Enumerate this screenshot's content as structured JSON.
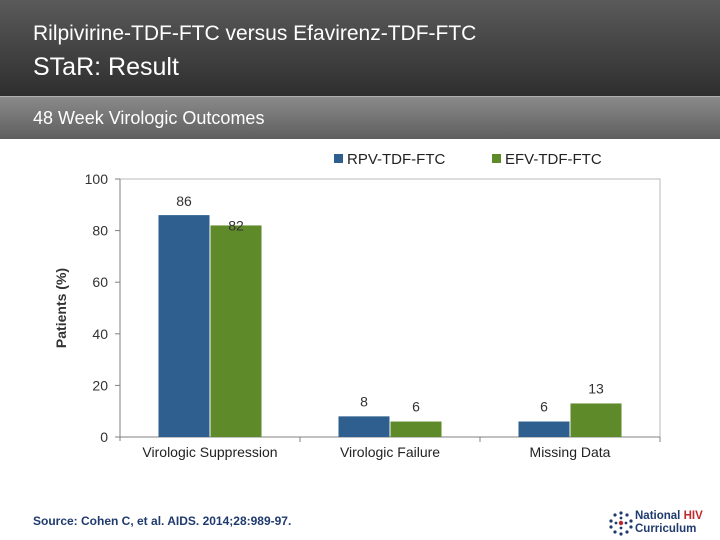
{
  "header": {
    "title_line1": "Rilpivirine-TDF-FTC versus Efavirenz-TDF-FTC",
    "title_line2": "STaR: Result"
  },
  "subheader": {
    "text": "48 Week Virologic Outcomes"
  },
  "chart_data": {
    "type": "bar",
    "categories": [
      "Virologic Suppression",
      "Virologic Failure",
      "Missing Data"
    ],
    "series": [
      {
        "name": "RPV-TDF-FTC",
        "color": "#2e5f8f",
        "values": [
          86,
          8,
          6
        ]
      },
      {
        "name": "EFV-TDF-FTC",
        "color": "#5f8a2a",
        "values": [
          82,
          6,
          13
        ]
      }
    ],
    "ylabel": "Patients (%)",
    "xlabel": "",
    "ylim": [
      0,
      100
    ],
    "yticks": [
      0,
      20,
      40,
      60,
      80,
      100
    ],
    "legend": "top-right",
    "grid": false
  },
  "source": {
    "text": "Source: Cohen C, et al. AIDS. 2014;28:989-97."
  },
  "logo": {
    "line1": "National ",
    "line1_accent": "HIV",
    "line2": "Curriculum"
  }
}
